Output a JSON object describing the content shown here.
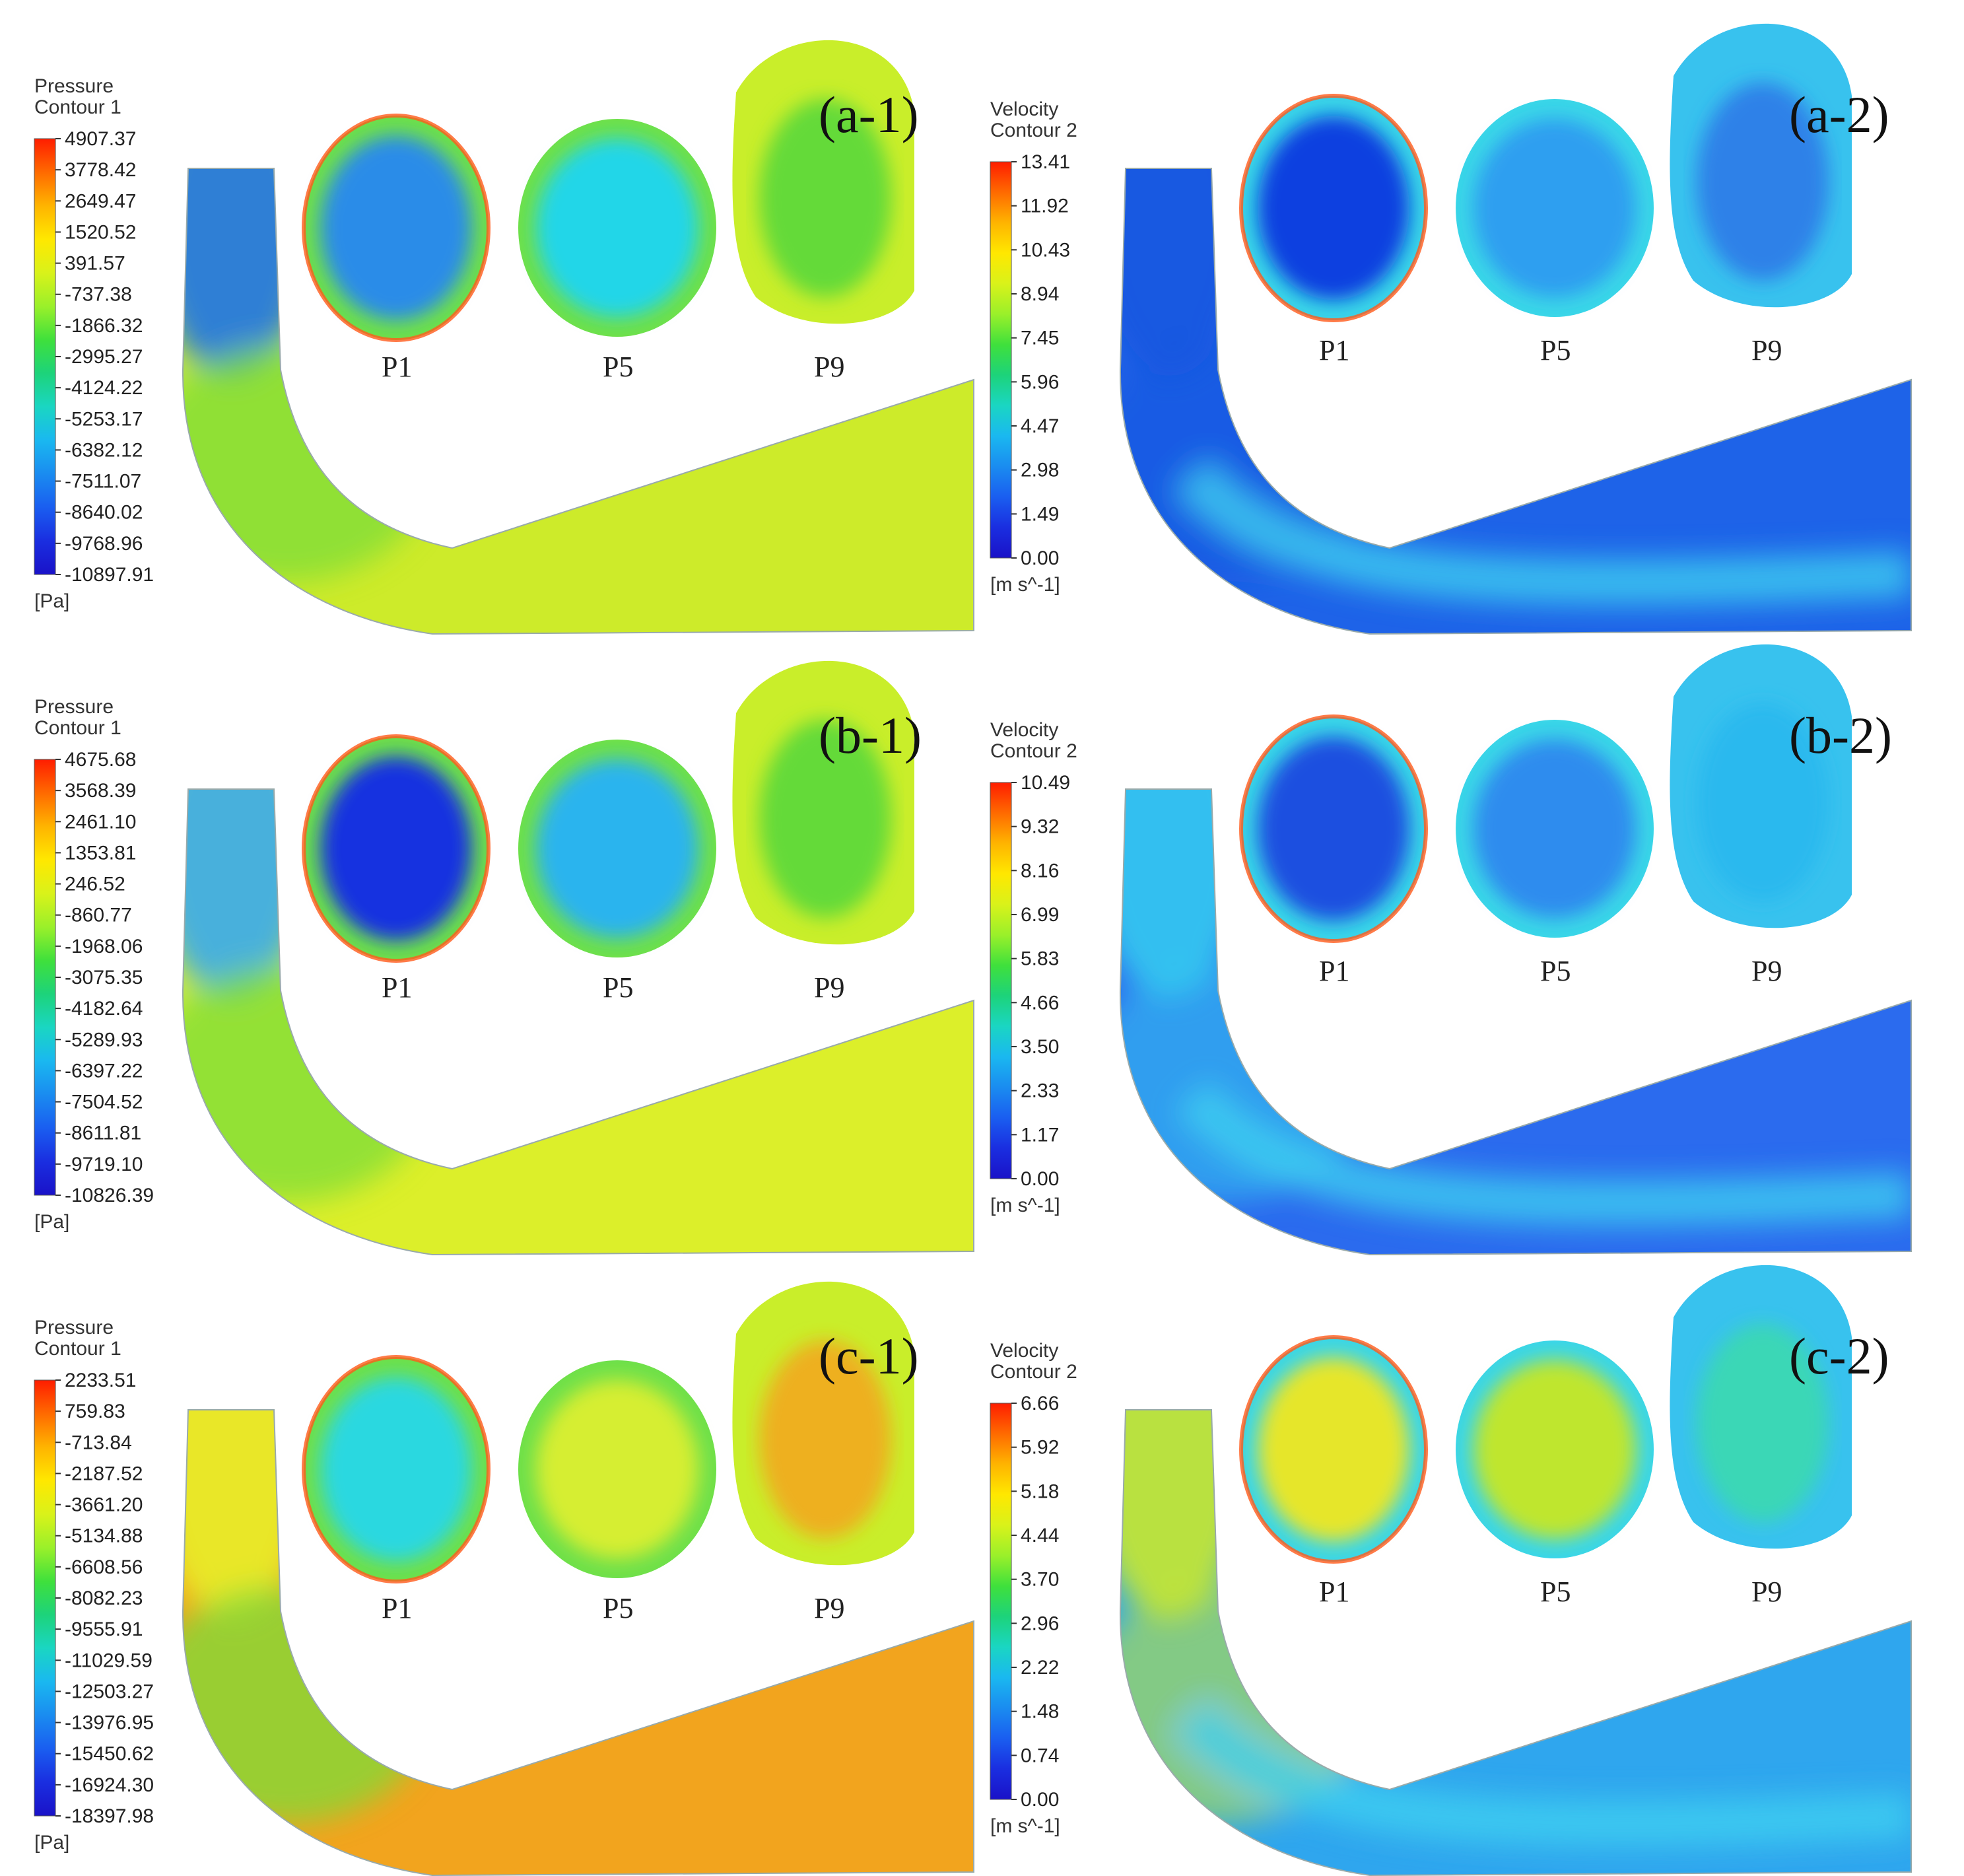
{
  "panels": [
    {
      "id": "a-1",
      "label": "(a-1)",
      "kind": "pressure",
      "legend": {
        "title1": "Pressure",
        "title2": "Contour 1",
        "unit": "[Pa]",
        "ticks": [
          "4907.37",
          "3778.42",
          "2649.47",
          "1520.52",
          "391.57",
          "-737.38",
          "-1866.32",
          "-2995.27",
          "-4124.22",
          "-5253.17",
          "-6382.12",
          "-7511.07",
          "-8640.02",
          "-9768.96",
          "-10897.91"
        ]
      },
      "sections": [
        "P1",
        "P5",
        "P9"
      ],
      "colors": {
        "pipe": "#cdeb2a",
        "inlet": "#1e74e8",
        "p1": "#2a8ce8",
        "p5": "#22d6e8",
        "p9": "#5ad83a"
      }
    },
    {
      "id": "a-2",
      "label": "(a-2)",
      "kind": "velocity",
      "legend": {
        "title1": "Velocity",
        "title2": "Contour 2",
        "unit": "[m s^-1]",
        "ticks": [
          "13.41",
          "11.92",
          "10.43",
          "8.94",
          "7.45",
          "5.96",
          "4.47",
          "2.98",
          "1.49",
          "0.00"
        ]
      },
      "sections": [
        "P1",
        "P5",
        "P9"
      ],
      "colors": {
        "pipe": "#1e63e8",
        "inlet": "#1a56e0",
        "p1": "#0f3fe0",
        "p5": "#2f9ff0",
        "p9": "#2d7ae8"
      }
    },
    {
      "id": "b-1",
      "label": "(b-1)",
      "kind": "pressure",
      "legend": {
        "title1": "Pressure",
        "title2": "Contour 1",
        "unit": "[Pa]",
        "ticks": [
          "4675.68",
          "3568.39",
          "2461.10",
          "1353.81",
          "246.52",
          "-860.77",
          "-1968.06",
          "-3075.35",
          "-4182.64",
          "-5289.93",
          "-6397.22",
          "-7504.52",
          "-8611.81",
          "-9719.10",
          "-10826.39"
        ]
      },
      "sections": [
        "P1",
        "P5",
        "P9"
      ],
      "colors": {
        "pipe": "#dcef2a",
        "inlet": "#39a8f0",
        "p1": "#1630e0",
        "p5": "#2ab4ee",
        "p9": "#5ad83a"
      }
    },
    {
      "id": "b-2",
      "label": "(b-2)",
      "kind": "velocity",
      "legend": {
        "title1": "Velocity",
        "title2": "Contour 2",
        "unit": "[m s^-1]",
        "ticks": [
          "10.49",
          "9.32",
          "8.16",
          "6.99",
          "5.83",
          "4.66",
          "3.50",
          "2.33",
          "1.17",
          "0.00"
        ]
      },
      "sections": [
        "P1",
        "P5",
        "P9"
      ],
      "colors": {
        "pipe": "#2b6bee",
        "inlet": "#35c9f0",
        "p1": "#1a50e0",
        "p5": "#2f8cee",
        "p9": "#2ab8ee"
      }
    },
    {
      "id": "c-1",
      "label": "(c-1)",
      "kind": "pressure",
      "legend": {
        "title1": "Pressure",
        "title2": "Contour 1",
        "unit": "[Pa]",
        "ticks": [
          "2233.51",
          "759.83",
          "-713.84",
          "-2187.52",
          "-3661.20",
          "-5134.88",
          "-6608.56",
          "-8082.23",
          "-9555.91",
          "-11029.59",
          "-12503.27",
          "-13976.95",
          "-15450.62",
          "-16924.30",
          "-18397.98"
        ]
      },
      "sections": [
        "P1",
        "P5",
        "P9"
      ],
      "colors": {
        "pipe": "#f2a41e",
        "inlet": "#e8ee2a",
        "p1": "#2ad8e0",
        "p5": "#d6ee30",
        "p9": "#f2a820"
      }
    },
    {
      "id": "c-2",
      "label": "(c-2)",
      "kind": "velocity",
      "legend": {
        "title1": "Velocity",
        "title2": "Contour 2",
        "unit": "[m s^-1]",
        "ticks": [
          "6.66",
          "5.92",
          "5.18",
          "4.44",
          "3.70",
          "2.96",
          "2.22",
          "1.48",
          "0.74",
          "0.00"
        ]
      },
      "sections": [
        "P1",
        "P5",
        "P9"
      ],
      "colors": {
        "pipe": "#2fa6ee",
        "inlet": "#c9e82e",
        "p1": "#e6e62a",
        "p5": "#bfe62e",
        "p9": "#3ad9b0"
      }
    }
  ],
  "colormap": [
    "#ff1d00",
    "#ff6a00",
    "#ffb400",
    "#ffe800",
    "#d9f21a",
    "#9af02a",
    "#3fe03c",
    "#1dd37a",
    "#1ad6c2",
    "#1ab8f0",
    "#1a8cf0",
    "#1a5ef0",
    "#1a2ee0",
    "#1a12c8"
  ]
}
